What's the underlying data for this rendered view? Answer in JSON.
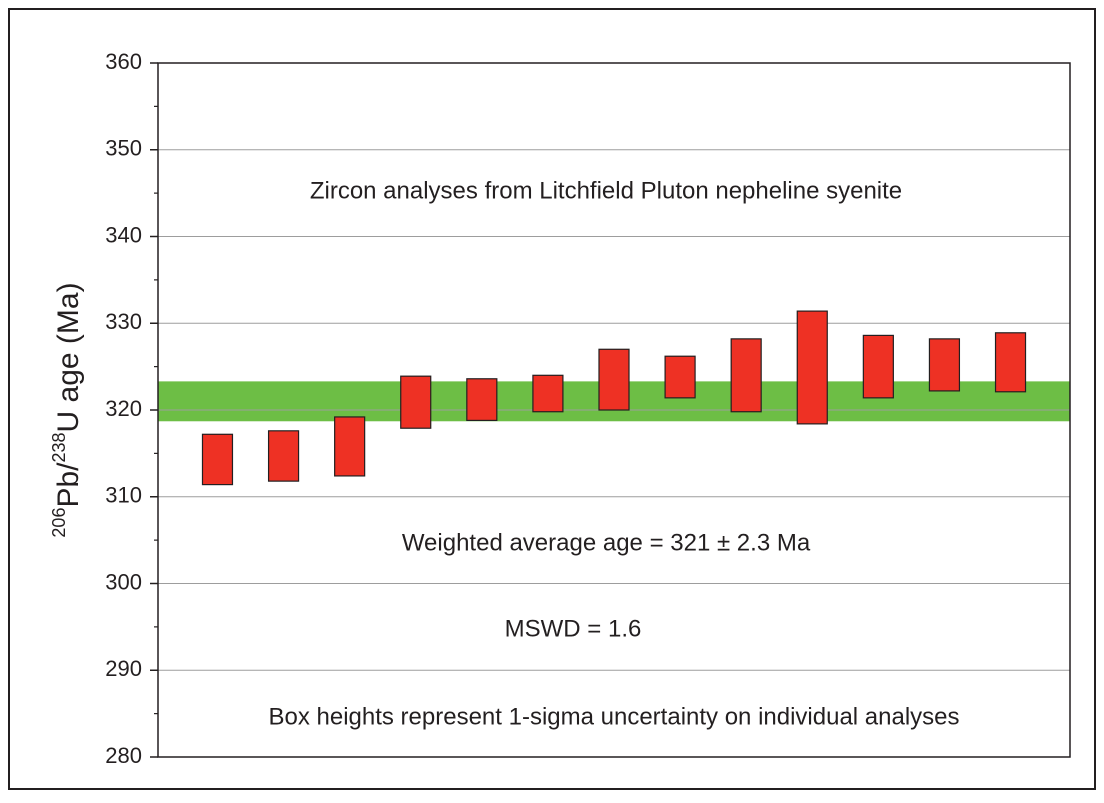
{
  "chart_data": {
    "type": "box-error",
    "y_label": {
      "iso1": "206",
      "el1": "Pb/",
      "iso2": "238",
      "rest": "U age (Ma)"
    },
    "annotations": [
      "Zircon analyses from Litchfield Pluton nepheline syenite",
      "Weighted average age = 321 ± 2.3 Ma",
      "MSWD = 1.6",
      "Box heights represent 1-sigma uncertainty on individual analyses"
    ],
    "x": [
      1,
      2,
      3,
      4,
      5,
      6,
      7,
      8,
      9,
      10,
      11,
      12,
      13
    ],
    "xlim": [
      0.1,
      13.9
    ],
    "series": [
      {
        "color": "#ee3124",
        "values": [
          314.3,
          314.7,
          315.8,
          320.9,
          321.2,
          321.9,
          323.5,
          323.8,
          324.0,
          324.9,
          325.0,
          325.2,
          325.5
        ],
        "errors": [
          2.9,
          2.9,
          3.4,
          3.0,
          2.4,
          2.1,
          3.5,
          2.4,
          4.2,
          6.5,
          3.6,
          3.0,
          3.4
        ]
      }
    ],
    "band": {
      "value": 321,
      "error": 2.3,
      "color": "#6dbe45"
    },
    "ylim": [
      280,
      360
    ],
    "yticks": [
      280,
      290,
      300,
      310,
      320,
      330,
      340,
      350,
      360
    ],
    "yminorticks": [
      285,
      295,
      305,
      315,
      325,
      335,
      345,
      355
    ],
    "grid": true
  }
}
